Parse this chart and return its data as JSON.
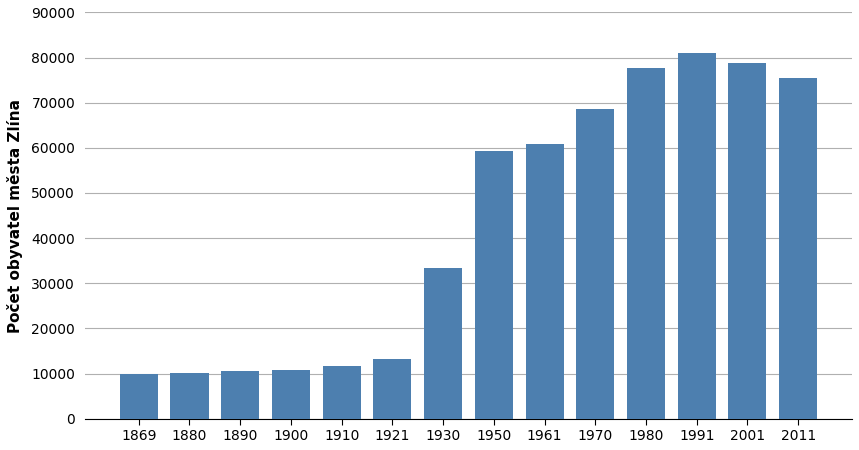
{
  "categories": [
    "1869",
    "1880",
    "1890",
    "1900",
    "1910",
    "1921",
    "1930",
    "1950",
    "1961",
    "1970",
    "1980",
    "1991",
    "2001",
    "2011"
  ],
  "values": [
    9838,
    10181,
    10519,
    10874,
    11612,
    13305,
    33267,
    59265,
    60960,
    68643,
    77634,
    80976,
    78828,
    75555
  ],
  "bar_color": "#4d7faf",
  "ylabel": "Počet obyvatel města Zlína",
  "ylim": [
    0,
    90000
  ],
  "yticks": [
    0,
    10000,
    20000,
    30000,
    40000,
    50000,
    60000,
    70000,
    80000,
    90000
  ],
  "background_color": "#ffffff",
  "grid_color": "#b0b0b0",
  "bar_width": 0.75,
  "ylabel_fontsize": 11,
  "tick_fontsize": 10
}
